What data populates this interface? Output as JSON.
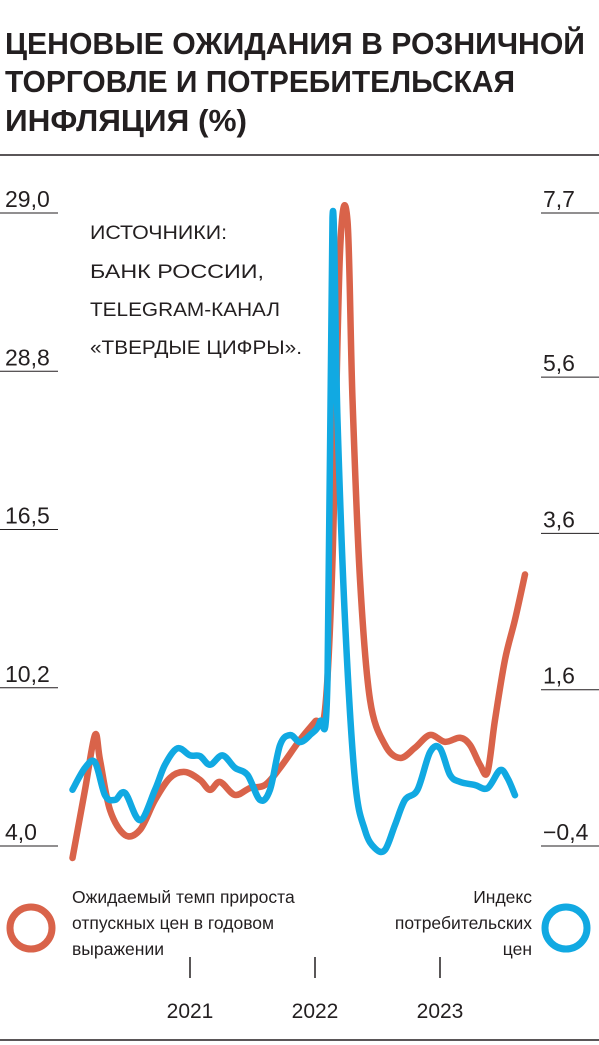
{
  "chart_data": {
    "type": "line",
    "title": [
      "ЦЕНОВЫЕ ОЖИДАНИЯ В РОЗНИЧНОЙ",
      "ТОРГОВЛЕ И ПОТРЕБИТЕЛЬСКАЯ",
      "ИНФЛЯЦИЯ (%)"
    ],
    "annotation": [
      "ИСТОЧНИКИ:",
      "БАНК РОССИИ,",
      "TELEGRAM-КАНАЛ",
      "«ТВЕРДЫЕ ЦИФРЫ»."
    ],
    "xlim": [
      2019.48,
      2024.272
    ],
    "xticks": [
      2021,
      2022,
      2023
    ],
    "ylim": [
      4.0,
      29.0
    ],
    "yticks": [
      {
        "value": 4.0,
        "label": "4,0"
      },
      {
        "value": 10.2,
        "label": "10,2"
      },
      {
        "value": 16.5,
        "label": "16,5"
      },
      {
        "value": 28.8,
        "label": "28,8"
      },
      {
        "value": 29.0,
        "label": "29,0"
      }
    ],
    "y2lim": [
      -0.4,
      7.7
    ],
    "y2ticks": [
      {
        "value": -0.4,
        "label": "−0,4"
      },
      {
        "value": 1.6,
        "label": "1,6"
      },
      {
        "value": 3.6,
        "label": "3,6"
      },
      {
        "value": 5.6,
        "label": "5,6"
      },
      {
        "value": 7.7,
        "label": "7,7"
      }
    ],
    "series": [
      {
        "name": "Ожидаемый темп прироста\nотпускных цен в годовом\nвыражении",
        "color": "#d9634a",
        "axis": "y",
        "x": [
          2020.06,
          2020.16,
          2020.24,
          2020.28,
          2020.36,
          2020.48,
          2020.6,
          2020.72,
          2020.84,
          2020.96,
          2021.08,
          2021.16,
          2021.24,
          2021.36,
          2021.48,
          2021.6,
          2021.72,
          2021.88,
          2022.0,
          2022.08,
          2022.14,
          2022.2,
          2022.26,
          2022.3,
          2022.36,
          2022.44,
          2022.56,
          2022.68,
          2022.8,
          2022.92,
          2023.04,
          2023.16,
          2023.24,
          2023.32,
          2023.38,
          2023.44,
          2023.52,
          2023.6,
          2023.68
        ],
        "values": [
          3.53,
          6.2,
          8.35,
          7.37,
          5.41,
          4.43,
          4.63,
          5.8,
          6.67,
          6.9,
          6.59,
          6.2,
          6.51,
          6.0,
          6.27,
          6.39,
          7.06,
          8.16,
          8.87,
          9.34,
          15.3,
          28.95,
          28.99,
          26.62,
          14.51,
          9.73,
          7.96,
          7.45,
          7.85,
          8.35,
          8.08,
          8.24,
          7.96,
          7.18,
          6.9,
          8.94,
          11.32,
          12.91,
          14.71
        ]
      },
      {
        "name": "Индекс\nпотребительских\nцен",
        "color": "#11a9e2",
        "axis": "y2",
        "x": [
          2020.06,
          2020.16,
          2020.24,
          2020.32,
          2020.4,
          2020.48,
          2020.6,
          2020.72,
          2020.8,
          2020.9,
          2021.0,
          2021.08,
          2021.16,
          2021.26,
          2021.36,
          2021.46,
          2021.56,
          2021.64,
          2021.72,
          2021.8,
          2021.88,
          2021.96,
          2022.04,
          2022.1,
          2022.14,
          2022.18,
          2022.24,
          2022.32,
          2022.4,
          2022.48,
          2022.56,
          2022.64,
          2022.72,
          2022.82,
          2022.92,
          2023.0,
          2023.08,
          2023.16,
          2023.28,
          2023.38,
          2023.48,
          2023.54,
          2023.6
        ],
        "values": [
          0.32,
          0.6,
          0.67,
          0.25,
          0.19,
          0.28,
          -0.07,
          0.32,
          0.64,
          0.85,
          0.76,
          0.75,
          0.64,
          0.76,
          0.6,
          0.51,
          0.19,
          0.32,
          0.89,
          1.02,
          0.93,
          1.02,
          1.19,
          1.72,
          7.64,
          5.05,
          2.49,
          0.44,
          -0.2,
          -0.43,
          -0.45,
          -0.13,
          0.19,
          0.32,
          0.8,
          0.85,
          0.51,
          0.42,
          0.38,
          0.34,
          0.57,
          0.47,
          0.25
        ]
      }
    ]
  }
}
